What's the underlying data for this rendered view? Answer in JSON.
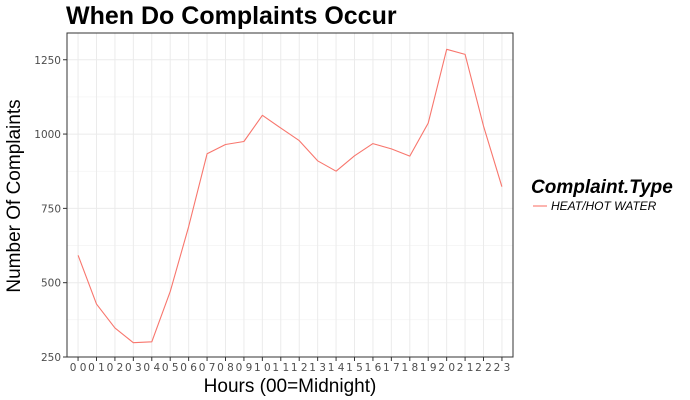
{
  "chart_data": {
    "type": "line",
    "title": "When Do Complaints Occur",
    "xlabel": "Hours (00=Midnight)",
    "ylabel": "Number Of Complaints",
    "categories": [
      "00",
      "01",
      "02",
      "03",
      "04",
      "05",
      "06",
      "07",
      "08",
      "09",
      "10",
      "11",
      "12",
      "13",
      "14",
      "15",
      "16",
      "17",
      "18",
      "19",
      "20",
      "21",
      "22",
      "23"
    ],
    "series": [
      {
        "name": "HEAT/HOT WATER",
        "color": "#F8766D",
        "values": [
          592,
          428,
          348,
          298,
          301,
          470,
          688,
          934,
          965,
          975,
          1063,
          1020,
          978,
          910,
          875,
          927,
          968,
          950,
          926,
          1037,
          1285,
          1268,
          1027,
          823
        ]
      }
    ],
    "yticks": [
      250,
      500,
      750,
      1000,
      1250
    ],
    "ylim": [
      250,
      1340
    ],
    "grid": true,
    "legend": {
      "title": "Complaint.Type",
      "position": "right"
    }
  }
}
